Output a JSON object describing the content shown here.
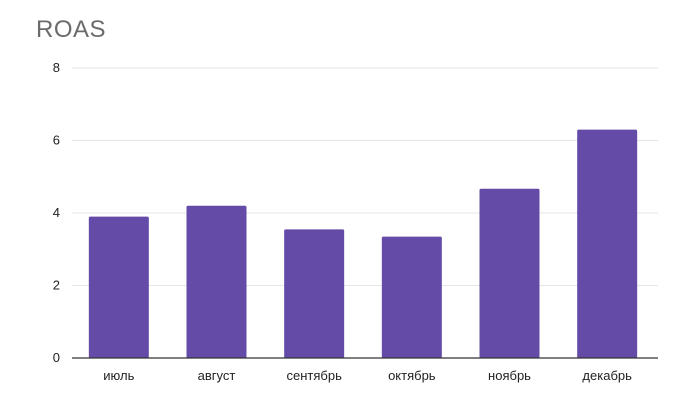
{
  "chart_data": {
    "type": "bar",
    "title": "ROAS",
    "xlabel": "",
    "ylabel": "",
    "categories": [
      "июль",
      "август",
      "сентябрь",
      "октябрь",
      "ноябрь",
      "декабрь"
    ],
    "values": [
      3.9,
      4.2,
      3.55,
      3.35,
      4.67,
      6.3
    ],
    "ylim": [
      0,
      8
    ],
    "yticks": [
      0,
      2,
      4,
      6,
      8
    ],
    "grid": true,
    "colors": {
      "bar": "#644ba8",
      "grid": "#e6e6e6",
      "axis": "#333333"
    }
  }
}
